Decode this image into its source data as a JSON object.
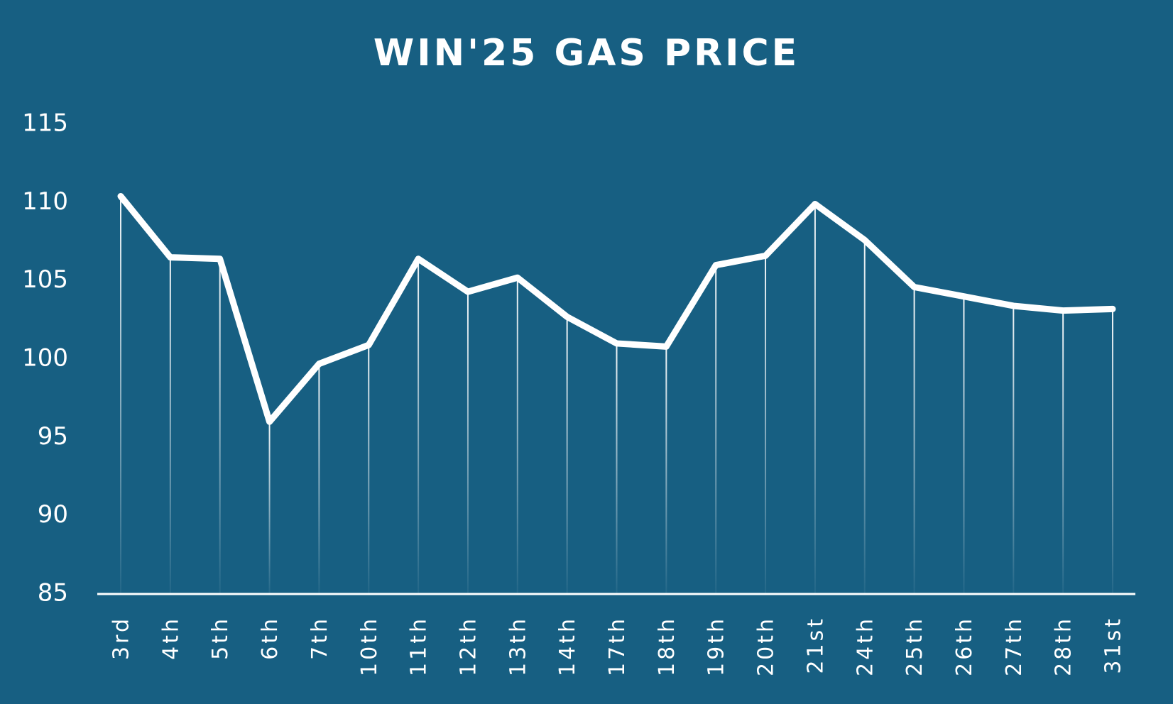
{
  "chart_data": {
    "type": "line",
    "title": "WIN'25 GAS PRICE",
    "categories": [
      "3rd",
      "4th",
      "5th",
      "6th",
      "7th",
      "10th",
      "11th",
      "12th",
      "13th",
      "14th",
      "17th",
      "18th",
      "19th",
      "20th",
      "21st",
      "24th",
      "25th",
      "26th",
      "27th",
      "28th",
      "31st"
    ],
    "values": [
      110.4,
      106.5,
      106.4,
      96.0,
      99.7,
      100.9,
      106.4,
      104.3,
      105.2,
      102.7,
      101.0,
      100.8,
      106.0,
      106.6,
      109.9,
      107.6,
      104.6,
      104.0,
      103.4,
      103.1,
      103.2
    ],
    "color": "#ffffff",
    "ylim": [
      85,
      115
    ],
    "yticks": [
      85,
      90,
      95,
      100,
      105,
      110,
      115
    ],
    "grid": false
  }
}
